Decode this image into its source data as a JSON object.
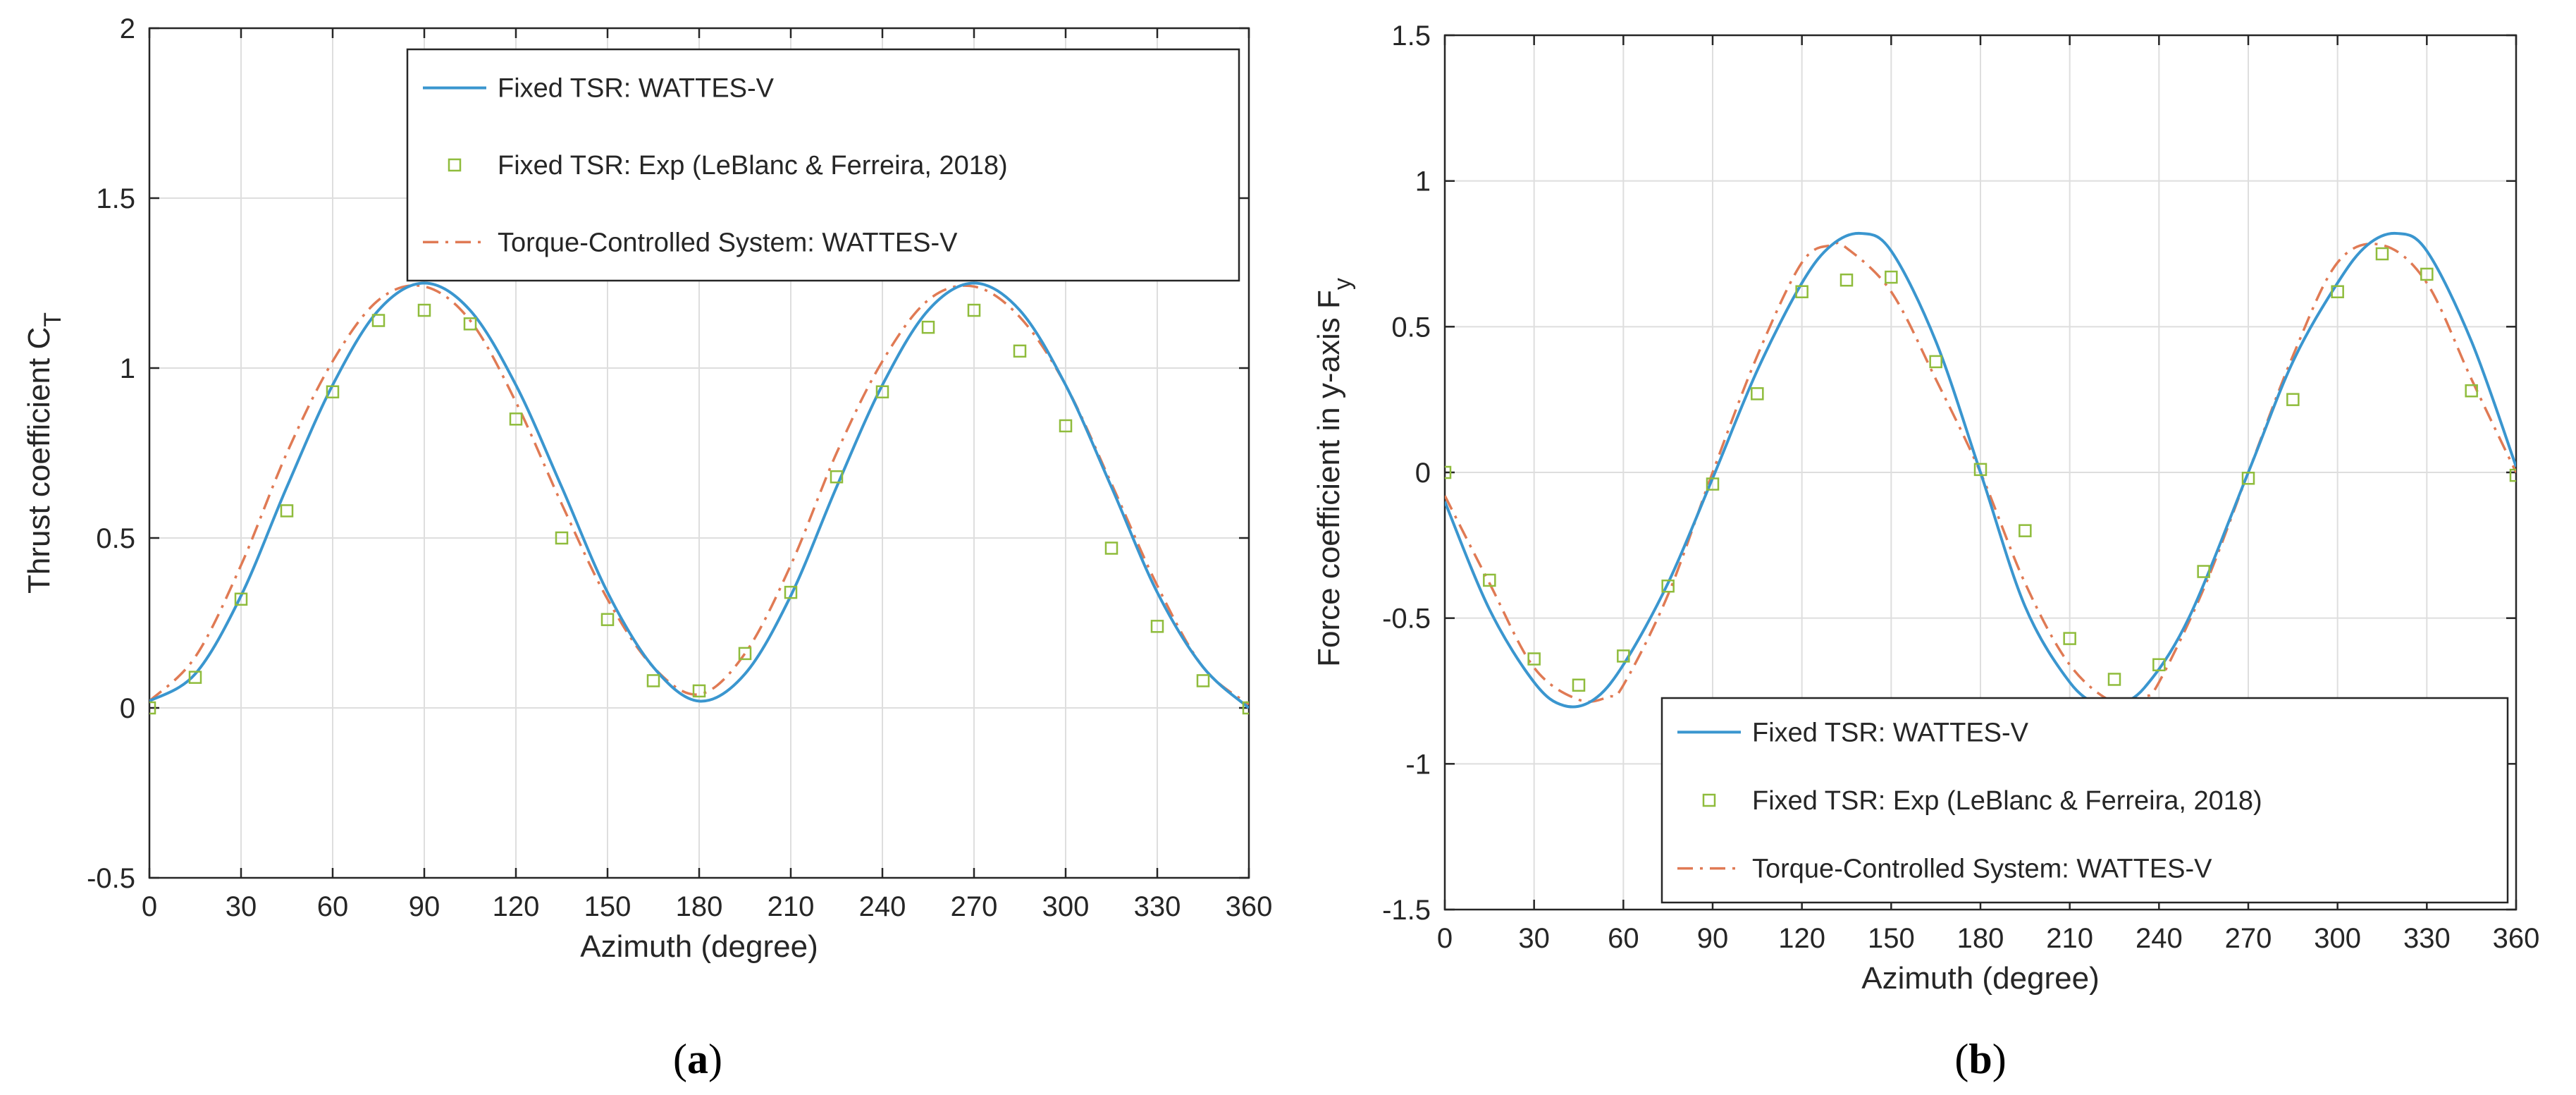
{
  "colors": {
    "wattes": "#3a96cf",
    "exp": "#8fbc3c",
    "torque": "#e07a54",
    "grid": "#dedede",
    "axis": "#262626"
  },
  "chart_data": [
    {
      "panel": "a",
      "type": "line",
      "caption": "(a)",
      "xlabel": "Azimuth (degree)",
      "ylabel": "Thrust coefficient C",
      "ylabel_sub": "T",
      "xlim": [
        0,
        360
      ],
      "ylim": [
        -0.5,
        2
      ],
      "xticks": [
        0,
        30,
        60,
        90,
        120,
        150,
        180,
        210,
        240,
        270,
        300,
        330,
        360
      ],
      "yticks": [
        -0.5,
        0,
        0.5,
        1,
        1.5,
        2
      ],
      "yticklabels": [
        "-0.5",
        "0",
        "0.5",
        "1",
        "1.5",
        "2"
      ],
      "grid": true,
      "legend_position": "top-right",
      "series": [
        {
          "name": "Fixed TSR: WATTES-V",
          "style": "solid",
          "x": [
            0,
            15,
            30,
            45,
            60,
            75,
            90,
            105,
            120,
            135,
            150,
            165,
            180,
            195,
            210,
            225,
            240,
            255,
            270,
            285,
            300,
            315,
            330,
            345,
            360
          ],
          "y": [
            0.02,
            0.1,
            0.33,
            0.65,
            0.95,
            1.17,
            1.25,
            1.17,
            0.95,
            0.65,
            0.34,
            0.12,
            0.02,
            0.1,
            0.33,
            0.65,
            0.95,
            1.17,
            1.25,
            1.17,
            0.95,
            0.65,
            0.34,
            0.12,
            0.0
          ]
        },
        {
          "name": "Fixed TSR: Exp (LeBlanc & Ferreira, 2018)",
          "style": "markers",
          "x": [
            0,
            15,
            30,
            45,
            60,
            75,
            90,
            105,
            120,
            135,
            150,
            165,
            180,
            195,
            210,
            225,
            240,
            255,
            270,
            285,
            300,
            315,
            330,
            345,
            360
          ],
          "y": [
            0.0,
            0.09,
            0.32,
            0.58,
            0.93,
            1.14,
            1.17,
            1.13,
            0.85,
            0.5,
            0.26,
            0.08,
            0.05,
            0.16,
            0.34,
            0.68,
            0.93,
            1.12,
            1.17,
            1.05,
            0.83,
            0.47,
            0.24,
            0.08,
            0.0
          ]
        },
        {
          "name": "Torque-Controlled System: WATTES-V",
          "style": "dashdot",
          "x": [
            0,
            15,
            30,
            45,
            60,
            75,
            90,
            105,
            120,
            135,
            150,
            165,
            180,
            195,
            210,
            225,
            240,
            255,
            270,
            285,
            300,
            315,
            330,
            345,
            360
          ],
          "y": [
            0.02,
            0.15,
            0.42,
            0.75,
            1.02,
            1.2,
            1.24,
            1.14,
            0.9,
            0.6,
            0.32,
            0.12,
            0.04,
            0.16,
            0.42,
            0.75,
            1.02,
            1.2,
            1.24,
            1.15,
            0.95,
            0.66,
            0.36,
            0.12,
            0.01
          ]
        }
      ]
    },
    {
      "panel": "b",
      "type": "line",
      "caption": "(b)",
      "xlabel": "Azimuth (degree)",
      "ylabel": "Force coefficient in y-axis F",
      "ylabel_sub": "y",
      "xlim": [
        0,
        360
      ],
      "ylim": [
        -1.5,
        1.5
      ],
      "xticks": [
        0,
        30,
        60,
        90,
        120,
        150,
        180,
        210,
        240,
        270,
        300,
        330,
        360
      ],
      "yticks": [
        -1.5,
        -1,
        -0.5,
        0,
        0.5,
        1,
        1.5
      ],
      "yticklabels": [
        "-1.5",
        "-1",
        "-0.5",
        "0",
        "0.5",
        "1",
        "1.5"
      ],
      "grid": true,
      "legend_position": "bottom-right",
      "series": [
        {
          "name": "Fixed TSR: WATTES-V",
          "style": "solid",
          "x": [
            0,
            15,
            30,
            40,
            50,
            60,
            75,
            90,
            105,
            120,
            130,
            140,
            150,
            165,
            180,
            195,
            210,
            220,
            225,
            235,
            250,
            270,
            285,
            300,
            310,
            320,
            330,
            345,
            360
          ],
          "y": [
            -0.1,
            -0.47,
            -0.72,
            -0.8,
            -0.78,
            -0.66,
            -0.38,
            -0.02,
            0.35,
            0.65,
            0.78,
            0.82,
            0.76,
            0.45,
            0.0,
            -0.46,
            -0.72,
            -0.8,
            -0.8,
            -0.74,
            -0.5,
            0.0,
            0.38,
            0.65,
            0.78,
            0.82,
            0.76,
            0.45,
            0.02
          ]
        },
        {
          "name": "Fixed TSR: Exp (LeBlanc & Ferreira, 2018)",
          "style": "markers",
          "x": [
            0,
            15,
            30,
            45,
            60,
            75,
            90,
            105,
            120,
            135,
            150,
            165,
            180,
            195,
            210,
            225,
            240,
            255,
            270,
            285,
            300,
            315,
            330,
            345,
            360
          ],
          "y": [
            0.0,
            -0.37,
            -0.64,
            -0.73,
            -0.63,
            -0.39,
            -0.04,
            0.27,
            0.62,
            0.66,
            0.67,
            0.38,
            0.01,
            -0.2,
            -0.57,
            -0.71,
            -0.66,
            -0.34,
            -0.02,
            0.25,
            0.62,
            0.75,
            0.68,
            0.28,
            -0.01
          ]
        },
        {
          "name": "Torque-Controlled System: WATTES-V",
          "style": "dashdot",
          "x": [
            0,
            15,
            30,
            45,
            55,
            60,
            75,
            90,
            105,
            120,
            130,
            135,
            150,
            165,
            180,
            195,
            210,
            225,
            235,
            240,
            255,
            270,
            285,
            300,
            315,
            330,
            345,
            360
          ],
          "y": [
            -0.08,
            -0.38,
            -0.67,
            -0.78,
            -0.77,
            -0.73,
            -0.42,
            0.0,
            0.4,
            0.72,
            0.78,
            0.77,
            0.62,
            0.32,
            0.0,
            -0.38,
            -0.66,
            -0.79,
            -0.77,
            -0.72,
            -0.4,
            0.0,
            0.4,
            0.72,
            0.78,
            0.65,
            0.32,
            0.0
          ]
        }
      ]
    }
  ]
}
